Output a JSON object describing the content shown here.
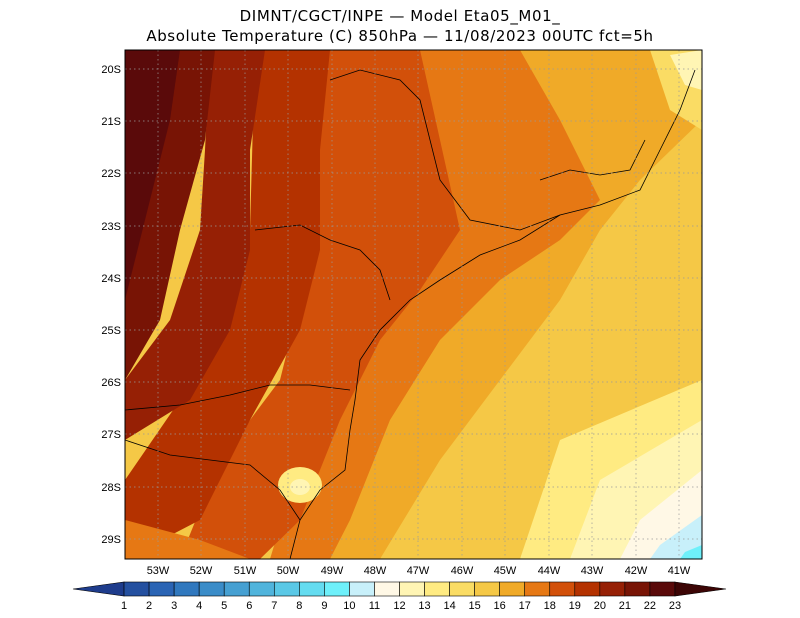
{
  "header": {
    "line1": "DIMNT/CGCT/INPE —  Model Eta05_M01_",
    "line2": "Absolute Temperature (C) 850hPa —  11/08/2023 00UTC fct=5h"
  },
  "map": {
    "lat_labels": [
      "20S",
      "21S",
      "22S",
      "23S",
      "24S",
      "25S",
      "26S",
      "27S",
      "28S",
      "29S"
    ],
    "lon_labels": [
      "53W",
      "52W",
      "51W",
      "50W",
      "49W",
      "48W",
      "47W",
      "46W",
      "45W",
      "44W",
      "43W",
      "42W",
      "41W"
    ]
  },
  "colorbar": {
    "labels": [
      "1",
      "2",
      "3",
      "4",
      "5",
      "6",
      "7",
      "8",
      "9",
      "10",
      "11",
      "12",
      "13",
      "14",
      "15",
      "16",
      "17",
      "18",
      "19",
      "20",
      "21",
      "22",
      "23"
    ],
    "colors": [
      "#1e3c8c",
      "#2450a0",
      "#2a64b4",
      "#3078be",
      "#3a8cc8",
      "#46a0d2",
      "#50b4dc",
      "#5ac8e6",
      "#64dcf0",
      "#6ef0fa",
      "#c8f0fa",
      "#fff8e6",
      "#fff5b4",
      "#ffeb82",
      "#fadc64",
      "#f5c846",
      "#f0aa28",
      "#e67814",
      "#d2500a",
      "#b43200",
      "#962005",
      "#781405",
      "#5a0a0a",
      "#3c0505"
    ]
  }
}
